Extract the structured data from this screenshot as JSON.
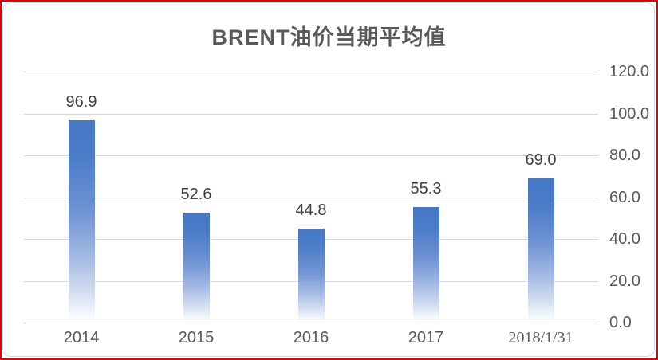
{
  "chart_data": {
    "type": "bar",
    "title": "BRENT油价当期平均值",
    "categories": [
      "2014",
      "2015",
      "2016",
      "2017",
      "2018/1/31"
    ],
    "values": [
      96.9,
      52.6,
      44.8,
      55.3,
      69.0
    ],
    "data_labels": [
      "96.9",
      "52.6",
      "44.8",
      "55.3",
      "69.0"
    ],
    "ylim": [
      0,
      120
    ],
    "ytick_step": 20,
    "ytick_labels_top_to_bottom": [
      "120.0",
      "100.0",
      "80.0",
      "60.0",
      "40.0",
      "20.0",
      "0.0"
    ],
    "grid": true,
    "legend_visible": false,
    "colors": {
      "bar_gradient_stops": [
        "#4577c6 0%",
        "#4b7cc8 18%",
        "#7093d4 45%",
        "#a4bae3 68%",
        "#d4def1 85%",
        "#f5f8fd 96%",
        "#ffffff 100%"
      ],
      "gridline": "#d9d9d9",
      "axis_line": "#c4c4c4",
      "title_text": "#595959",
      "data_label_text": "#404040",
      "tick_label_text": "#595959",
      "frame_border": "#d9d9d9",
      "outer_border": "#e60000"
    }
  }
}
